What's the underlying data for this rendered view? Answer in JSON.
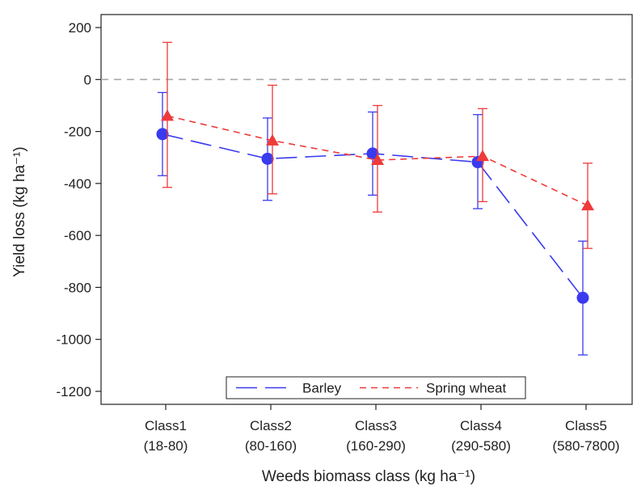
{
  "chart_data": {
    "type": "line",
    "title": "",
    "xlabel": "Weeds biomass class (kg ha⁻¹)",
    "ylabel": "Yield loss (kg ha⁻¹)",
    "ylim": [
      -1250,
      250
    ],
    "yticks": [
      200,
      0,
      -200,
      -400,
      -600,
      -800,
      -1000,
      -1200
    ],
    "categories": [
      "Class1",
      "Class2",
      "Class3",
      "Class4",
      "Class5"
    ],
    "category_ranges": [
      "(18-80)",
      "(80-160)",
      "(160-290)",
      "(290-580)",
      "(580-7800)"
    ],
    "reference_line": 0,
    "grid": false,
    "legend_position": "bottom",
    "series": [
      {
        "name": "Barley",
        "color": "#3a3aef",
        "line_style": "long-dash",
        "marker": "circle",
        "values": [
          -210,
          -305,
          -285,
          -318,
          -840
        ],
        "error_low": [
          -370,
          -465,
          -445,
          -497,
          -1060
        ],
        "error_high": [
          -50,
          -148,
          -125,
          -135,
          -622
        ]
      },
      {
        "name": "Spring wheat",
        "color": "#ef3a3a",
        "line_style": "short-dash",
        "marker": "triangle",
        "values": [
          -140,
          -235,
          -310,
          -295,
          -485
        ],
        "error_low": [
          -415,
          -440,
          -510,
          -470,
          -650
        ],
        "error_high": [
          143,
          -22,
          -100,
          -112,
          -322
        ]
      }
    ]
  }
}
